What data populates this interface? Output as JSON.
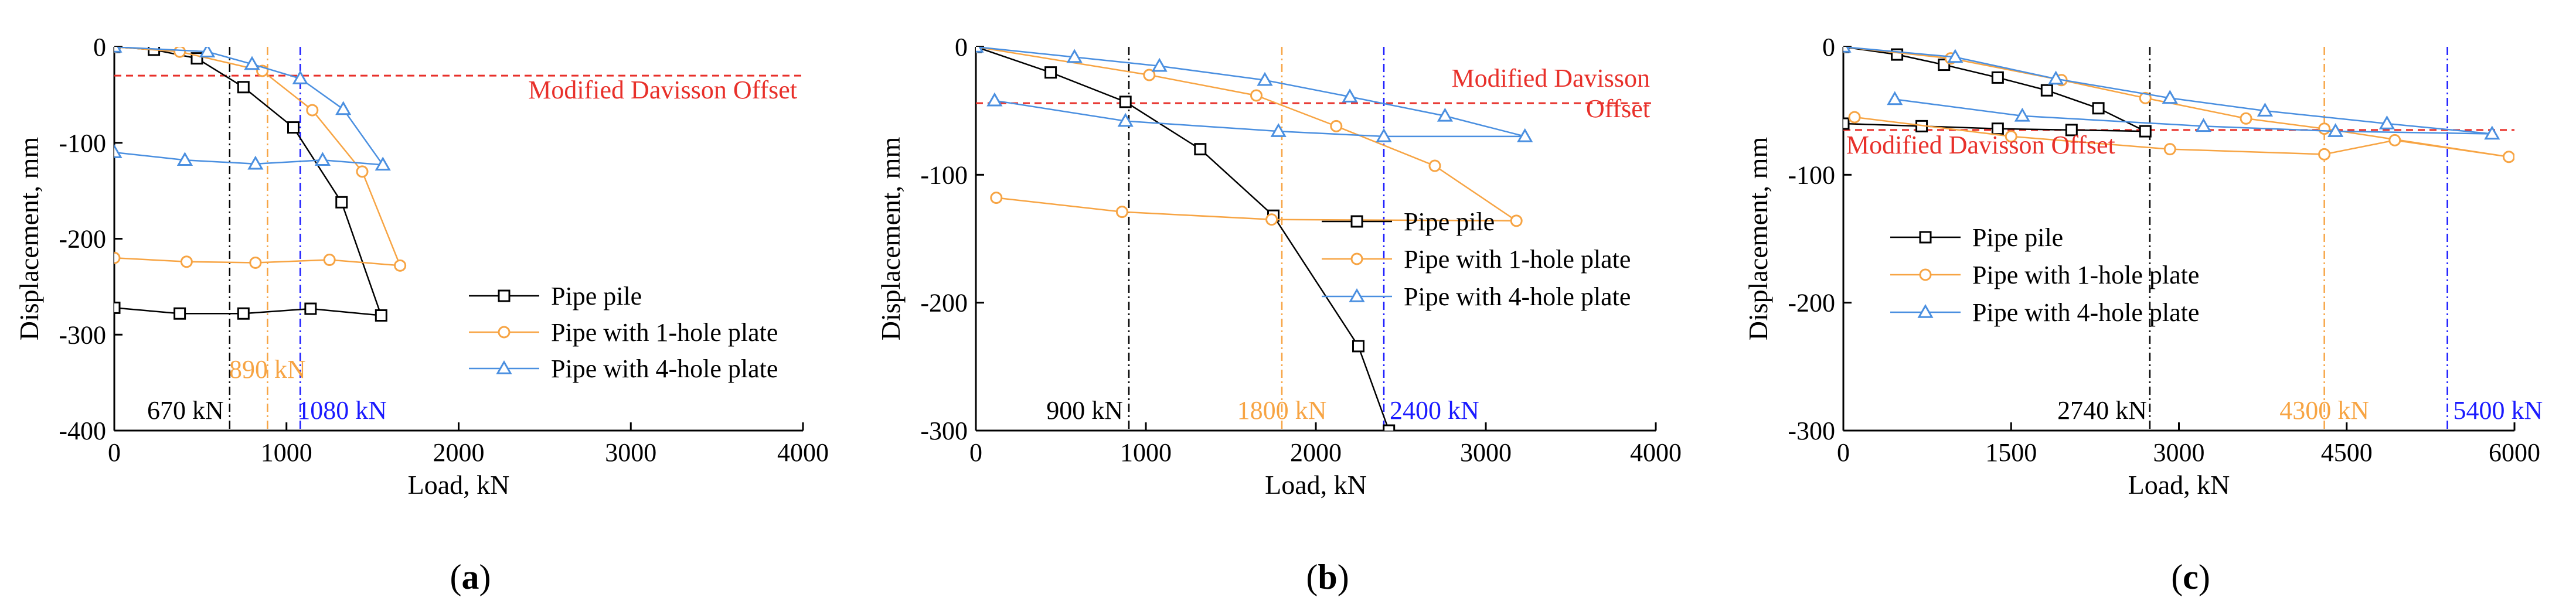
{
  "chart_data": [
    {
      "type": "line",
      "panel_label": "a",
      "xlabel": "Load, kN",
      "ylabel": "Displacement, mm",
      "xlim": [
        0,
        4000
      ],
      "ylim": [
        -400,
        0
      ],
      "xticks": [
        0,
        1000,
        2000,
        3000,
        4000
      ],
      "yticks": [
        0,
        -100,
        -200,
        -300,
        -400
      ],
      "legend_position": "center-right",
      "series": [
        {
          "name": "Pipe pile",
          "color": "#000000",
          "marker": "square",
          "x": [
            0,
            230,
            480,
            750,
            1040,
            1320,
            1550,
            1140,
            750,
            380,
            0
          ],
          "y": [
            0,
            -3,
            -12,
            -42,
            -84,
            -162,
            -280,
            -273,
            -278,
            -278,
            -272
          ]
        },
        {
          "name": "Pipe with 1-hole plate",
          "color": "#f7a443",
          "marker": "circle",
          "x": [
            0,
            380,
            860,
            1150,
            1440,
            1660,
            1250,
            820,
            420,
            0
          ],
          "y": [
            0,
            -5,
            -25,
            -66,
            -130,
            -228,
            -222,
            -225,
            -224,
            -220
          ]
        },
        {
          "name": "Pipe with 4-hole plate",
          "color": "#4a8fe0",
          "marker": "triangle",
          "x": [
            0,
            540,
            800,
            1080,
            1330,
            1560,
            1210,
            820,
            410,
            0
          ],
          "y": [
            0,
            -5,
            -18,
            -33,
            -65,
            -123,
            -118,
            -122,
            -118,
            -110
          ]
        }
      ],
      "reference_line": {
        "label": "Modified Davisson Offset",
        "y": -30,
        "color": "#e8302a"
      },
      "vertical_markers": [
        {
          "x": 670,
          "label": "670 kN",
          "color": "#000000"
        },
        {
          "x": 890,
          "label": "890 kN",
          "color": "#f7a443"
        },
        {
          "x": 1080,
          "label": "1080 kN",
          "color": "#1a1aff"
        }
      ]
    },
    {
      "type": "line",
      "panel_label": "b",
      "xlabel": "Load, kN",
      "ylabel": "Displacement, mm",
      "xlim": [
        0,
        4000
      ],
      "ylim": [
        -300,
        0
      ],
      "xticks": [
        0,
        1000,
        2000,
        3000,
        4000
      ],
      "yticks": [
        0,
        -100,
        -200,
        -300
      ],
      "legend_position": "center-right",
      "series": [
        {
          "name": "Pipe pile",
          "color": "#000000",
          "marker": "square",
          "x": [
            0,
            440,
            880,
            1320,
            1750,
            2250,
            2430
          ],
          "y": [
            0,
            -20,
            -43,
            -80,
            -132,
            -234,
            -300
          ]
        },
        {
          "name": "Pipe with 1-hole plate",
          "color": "#f7a443",
          "marker": "circle",
          "x": [
            0,
            1020,
            1650,
            2120,
            2700,
            3180,
            1740,
            860,
            120
          ],
          "y": [
            0,
            -22,
            -38,
            -62,
            -93,
            -136,
            -135,
            -129,
            -118
          ]
        },
        {
          "name": "Pipe with 4-hole plate",
          "color": "#4a8fe0",
          "marker": "triangle",
          "x": [
            0,
            580,
            1080,
            1700,
            2200,
            2760,
            3230,
            2400,
            1780,
            880,
            110
          ],
          "y": [
            0,
            -8,
            -15,
            -26,
            -39,
            -54,
            -70,
            -70,
            -66,
            -58,
            -42
          ]
        }
      ],
      "reference_line": {
        "label": "Modified Davisson Offset",
        "label_lines": [
          "Modified Davisson",
          "Offset"
        ],
        "y": -44,
        "color": "#e8302a"
      },
      "vertical_markers": [
        {
          "x": 900,
          "label": "900 kN",
          "color": "#000000"
        },
        {
          "x": 1800,
          "label": "1800 kN",
          "color": "#f7a443"
        },
        {
          "x": 2400,
          "label": "2400 kN",
          "color": "#1a1aff"
        }
      ]
    },
    {
      "type": "line",
      "panel_label": "c",
      "xlabel": "Load, kN",
      "ylabel": "Displacement, mm",
      "xlim": [
        0,
        6000
      ],
      "ylim": [
        -300,
        0
      ],
      "xticks": [
        0,
        1500,
        3000,
        4500,
        6000
      ],
      "yticks": [
        0,
        -100,
        -200,
        -300
      ],
      "legend_position": "center-left",
      "series": [
        {
          "name": "Pipe pile",
          "color": "#000000",
          "marker": "square",
          "x": [
            0,
            480,
            900,
            1380,
            1820,
            2280,
            2700,
            2040,
            1380,
            700,
            0
          ],
          "y": [
            0,
            -6,
            -14,
            -24,
            -34,
            -48,
            -66,
            -65,
            -64,
            -62,
            -60
          ]
        },
        {
          "name": "Pipe with 1-hole plate",
          "color": "#f7a443",
          "marker": "circle",
          "x": [
            0,
            960,
            1950,
            2700,
            3600,
            4300,
            5950,
            4930,
            4300,
            2920,
            1500,
            100
          ],
          "y": [
            0,
            -9,
            -26,
            -40,
            -56,
            -64,
            -86,
            -73,
            -84,
            -80,
            -70,
            -55
          ]
        },
        {
          "name": "Pipe with 4-hole plate",
          "color": "#4a8fe0",
          "marker": "triangle",
          "x": [
            0,
            1000,
            1900,
            2920,
            3770,
            4860,
            5800,
            4400,
            3220,
            1600,
            460
          ],
          "y": [
            0,
            -8,
            -25,
            -40,
            -50,
            -60,
            -68,
            -66,
            -62,
            -54,
            -41
          ]
        }
      ],
      "reference_line": {
        "label": "Modified Davisson Offset",
        "y": -65,
        "color": "#e8302a"
      },
      "vertical_markers": [
        {
          "x": 2740,
          "label": "2740 kN",
          "color": "#000000"
        },
        {
          "x": 4300,
          "label": "4300 kN",
          "color": "#f7a443"
        },
        {
          "x": 5400,
          "label": "5400 kN",
          "color": "#1a1aff"
        }
      ]
    }
  ]
}
